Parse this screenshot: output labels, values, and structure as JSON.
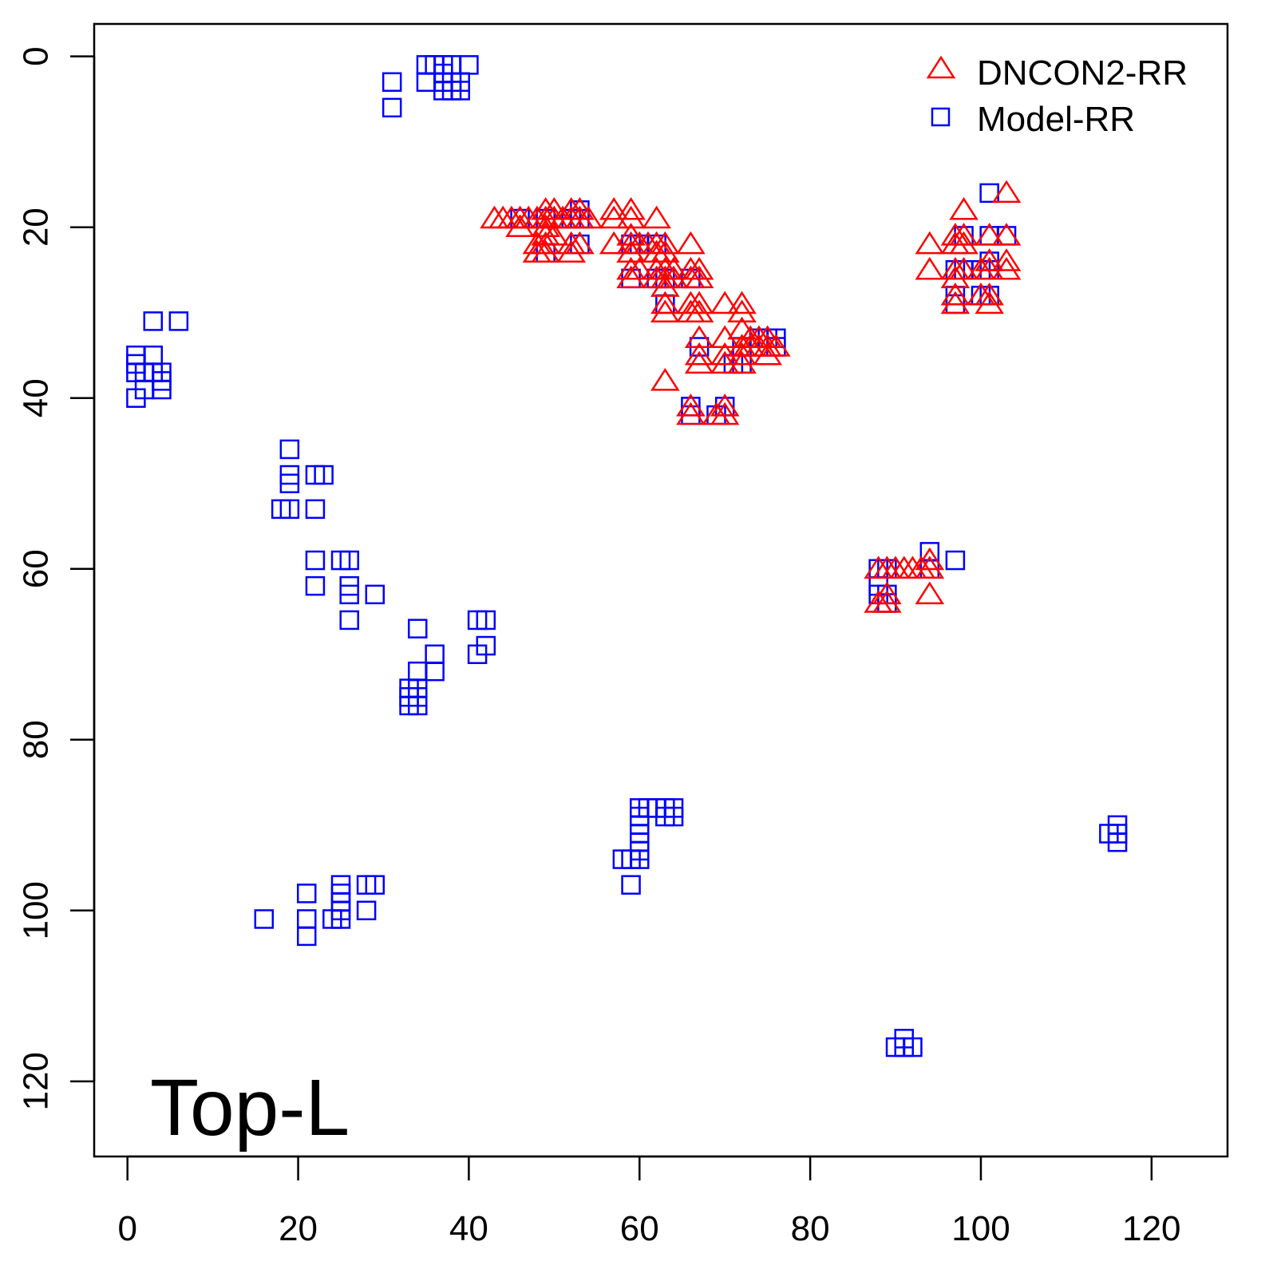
{
  "chart_data": {
    "type": "scatter",
    "title": "",
    "xlabel": "",
    "ylabel": "",
    "xlim": [
      -3.9,
      128.9
    ],
    "ylim": [
      128.8,
      -3.8
    ],
    "y_inverted": true,
    "grid": false,
    "x_ticks": [
      0,
      20,
      40,
      60,
      80,
      100,
      120
    ],
    "y_ticks": [
      0,
      20,
      40,
      60,
      80,
      100,
      120
    ],
    "x_tick_labels": [
      "0",
      "20",
      "40",
      "60",
      "80",
      "100",
      "120"
    ],
    "y_tick_labels": [
      "0",
      "20",
      "40",
      "60",
      "80",
      "100",
      "120"
    ],
    "annotation": "Top-L",
    "legend": {
      "placement": "top-right",
      "entries": [
        "DNCON2-RR",
        "Model-RR"
      ]
    },
    "series": [
      {
        "name": "DNCON2-RR",
        "marker": "triangle",
        "color": "#ff0000",
        "points": [
          [
            43,
            19
          ],
          [
            44,
            19
          ],
          [
            45,
            19
          ],
          [
            46,
            19
          ],
          [
            47,
            19
          ],
          [
            48,
            19
          ],
          [
            49,
            19
          ],
          [
            50,
            19
          ],
          [
            51,
            19
          ],
          [
            52,
            19
          ],
          [
            53,
            19
          ],
          [
            54,
            19
          ],
          [
            49,
            18
          ],
          [
            50,
            18
          ],
          [
            52,
            18
          ],
          [
            53,
            18
          ],
          [
            46,
            20
          ],
          [
            49,
            20
          ],
          [
            49,
            21
          ],
          [
            50,
            21
          ],
          [
            48,
            22
          ],
          [
            49,
            22
          ],
          [
            52,
            22
          ],
          [
            53,
            22
          ],
          [
            48,
            23
          ],
          [
            49,
            23
          ],
          [
            52,
            23
          ],
          [
            57,
            18
          ],
          [
            59,
            18
          ],
          [
            57,
            19
          ],
          [
            59,
            19
          ],
          [
            62,
            19
          ],
          [
            57,
            22
          ],
          [
            59,
            22
          ],
          [
            60,
            22
          ],
          [
            61,
            22
          ],
          [
            62,
            22
          ],
          [
            63,
            22
          ],
          [
            66,
            22
          ],
          [
            59,
            21
          ],
          [
            59,
            23
          ],
          [
            62,
            23
          ],
          [
            63,
            23
          ],
          [
            59,
            25
          ],
          [
            60,
            25
          ],
          [
            62,
            25
          ],
          [
            63,
            25
          ],
          [
            64,
            25
          ],
          [
            66,
            25
          ],
          [
            67,
            25
          ],
          [
            59,
            26
          ],
          [
            62,
            26
          ],
          [
            63,
            26
          ],
          [
            64,
            26
          ],
          [
            66,
            26
          ],
          [
            67,
            26
          ],
          [
            63,
            27
          ],
          [
            63,
            29
          ],
          [
            66,
            29
          ],
          [
            67,
            29
          ],
          [
            70,
            29
          ],
          [
            72,
            29
          ],
          [
            63,
            30
          ],
          [
            66,
            30
          ],
          [
            67,
            30
          ],
          [
            72,
            30
          ],
          [
            67,
            33
          ],
          [
            70,
            33
          ],
          [
            72,
            32
          ],
          [
            73,
            33
          ],
          [
            74,
            33
          ],
          [
            75,
            33
          ],
          [
            72,
            34
          ],
          [
            73,
            34
          ],
          [
            74,
            34
          ],
          [
            75,
            34
          ],
          [
            76,
            34
          ],
          [
            67,
            35
          ],
          [
            70,
            35
          ],
          [
            72,
            35
          ],
          [
            75,
            35
          ],
          [
            67,
            36
          ],
          [
            70,
            36
          ],
          [
            72,
            36
          ],
          [
            63,
            38
          ],
          [
            66,
            41
          ],
          [
            70,
            41
          ],
          [
            66,
            42
          ],
          [
            69,
            42
          ],
          [
            70,
            42
          ],
          [
            103,
            16
          ],
          [
            98,
            18
          ],
          [
            94,
            22
          ],
          [
            97,
            21
          ],
          [
            98,
            21
          ],
          [
            101,
            21
          ],
          [
            103,
            21
          ],
          [
            97,
            22
          ],
          [
            98,
            22
          ],
          [
            94,
            25
          ],
          [
            97,
            25
          ],
          [
            98,
            25
          ],
          [
            100,
            25
          ],
          [
            101,
            24
          ],
          [
            103,
            24
          ],
          [
            101,
            25
          ],
          [
            103,
            25
          ],
          [
            97,
            26
          ],
          [
            97,
            28
          ],
          [
            101,
            28
          ],
          [
            97,
            29
          ],
          [
            100,
            28
          ],
          [
            101,
            29
          ],
          [
            88,
            60
          ],
          [
            89,
            60
          ],
          [
            90,
            60
          ],
          [
            91,
            60
          ],
          [
            92,
            60
          ],
          [
            93,
            60
          ],
          [
            94,
            60
          ],
          [
            94,
            59
          ],
          [
            94,
            63
          ],
          [
            88,
            64
          ],
          [
            89,
            63
          ],
          [
            89,
            64
          ]
        ]
      },
      {
        "name": "Model-RR",
        "marker": "square",
        "color": "#0000ff",
        "points": [
          [
            35,
            1
          ],
          [
            36,
            1
          ],
          [
            37,
            1
          ],
          [
            38,
            1
          ],
          [
            40,
            1
          ],
          [
            35,
            3
          ],
          [
            37,
            2
          ],
          [
            37,
            3
          ],
          [
            38,
            3
          ],
          [
            39,
            3
          ],
          [
            37,
            4
          ],
          [
            38,
            4
          ],
          [
            39,
            4
          ],
          [
            31,
            3
          ],
          [
            31,
            6
          ],
          [
            1,
            35
          ],
          [
            1,
            36
          ],
          [
            1,
            37
          ],
          [
            2,
            37
          ],
          [
            3,
            35
          ],
          [
            3,
            37
          ],
          [
            4,
            37
          ],
          [
            4,
            38
          ],
          [
            4,
            39
          ],
          [
            2,
            39
          ],
          [
            1,
            40
          ],
          [
            3,
            31
          ],
          [
            6,
            31
          ],
          [
            19,
            46
          ],
          [
            19,
            49
          ],
          [
            19,
            50
          ],
          [
            18,
            53
          ],
          [
            19,
            53
          ],
          [
            22,
            49
          ],
          [
            23,
            49
          ],
          [
            22,
            53
          ],
          [
            22,
            59
          ],
          [
            25,
            59
          ],
          [
            26,
            59
          ],
          [
            22,
            62
          ],
          [
            26,
            62
          ],
          [
            26,
            63
          ],
          [
            29,
            63
          ],
          [
            26,
            66
          ],
          [
            34,
            67
          ],
          [
            34,
            72
          ],
          [
            36,
            70
          ],
          [
            36,
            72
          ],
          [
            33,
            74
          ],
          [
            34,
            74
          ],
          [
            33,
            75
          ],
          [
            34,
            75
          ],
          [
            33,
            76
          ],
          [
            34,
            76
          ],
          [
            41,
            66
          ],
          [
            42,
            66
          ],
          [
            42,
            69
          ],
          [
            41,
            70
          ],
          [
            16,
            101
          ],
          [
            21,
            98
          ],
          [
            21,
            101
          ],
          [
            21,
            103
          ],
          [
            24,
            101
          ],
          [
            25,
            101
          ],
          [
            25,
            97
          ],
          [
            25,
            98
          ],
          [
            25,
            99
          ],
          [
            25,
            100
          ],
          [
            28,
            97
          ],
          [
            29,
            97
          ],
          [
            28,
            100
          ],
          [
            60,
            88
          ],
          [
            61,
            88
          ],
          [
            62,
            88
          ],
          [
            63,
            88
          ],
          [
            64,
            88
          ],
          [
            60,
            89
          ],
          [
            63,
            89
          ],
          [
            64,
            89
          ],
          [
            60,
            90
          ],
          [
            60,
            91
          ],
          [
            60,
            92
          ],
          [
            60,
            93
          ],
          [
            58,
            94
          ],
          [
            59,
            94
          ],
          [
            60,
            94
          ],
          [
            59,
            97
          ],
          [
            115,
            91
          ],
          [
            116,
            90
          ],
          [
            116,
            91
          ],
          [
            116,
            92
          ],
          [
            90,
            116
          ],
          [
            91,
            115
          ],
          [
            91,
            116
          ],
          [
            92,
            116
          ],
          [
            88,
            60
          ],
          [
            89,
            60
          ],
          [
            88,
            62
          ],
          [
            88,
            63
          ],
          [
            89,
            63
          ],
          [
            89,
            64
          ],
          [
            94,
            58
          ],
          [
            94,
            60
          ],
          [
            97,
            59
          ],
          [
            46,
            19
          ],
          [
            49,
            19
          ],
          [
            49,
            23
          ],
          [
            53,
            18
          ],
          [
            53,
            19
          ],
          [
            53,
            22
          ],
          [
            52,
            19
          ],
          [
            59,
            22
          ],
          [
            59,
            26
          ],
          [
            60,
            22
          ],
          [
            62,
            22
          ],
          [
            62,
            26
          ],
          [
            63,
            26
          ],
          [
            63,
            29
          ],
          [
            66,
            26
          ],
          [
            66,
            41
          ],
          [
            66,
            42
          ],
          [
            67,
            34
          ],
          [
            69,
            42
          ],
          [
            70,
            41
          ],
          [
            71,
            36
          ],
          [
            72,
            36
          ],
          [
            72,
            34
          ],
          [
            74,
            33
          ],
          [
            75,
            33
          ],
          [
            76,
            33
          ],
          [
            76,
            34
          ],
          [
            101,
            16
          ],
          [
            98,
            21
          ],
          [
            101,
            21
          ],
          [
            103,
            21
          ],
          [
            97,
            25
          ],
          [
            98,
            25
          ],
          [
            100,
            25
          ],
          [
            101,
            24
          ],
          [
            101,
            25
          ],
          [
            97,
            28
          ],
          [
            100,
            28
          ],
          [
            101,
            28
          ],
          [
            97,
            29
          ]
        ]
      }
    ]
  }
}
